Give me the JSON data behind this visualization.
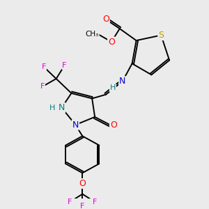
{
  "background_color": "#ebebeb",
  "colors": {
    "S": "#b8a000",
    "O": "#ff0000",
    "N": "#0000cc",
    "NH": "#008080",
    "F": "#dd00dd",
    "C": "#000000",
    "H": "#008080",
    "bond": "#000000"
  },
  "figsize": [
    3.0,
    3.0
  ],
  "dpi": 100
}
